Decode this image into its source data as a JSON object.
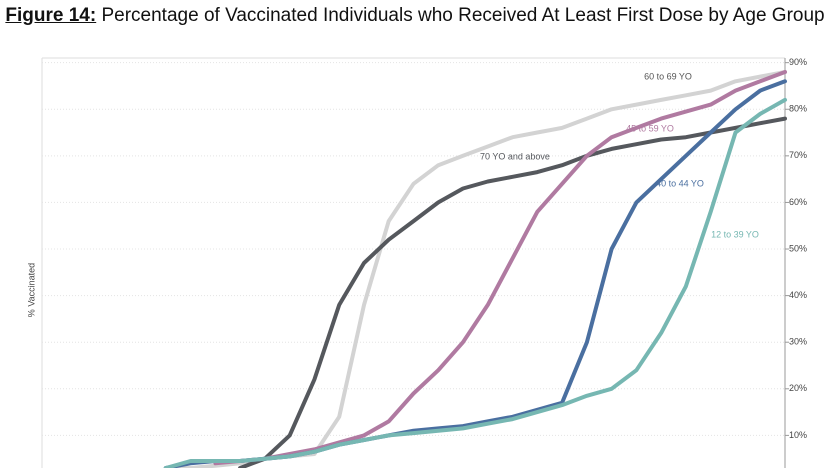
{
  "chart_data": {
    "type": "line",
    "figure_label": "Figure 14:",
    "title": "Percentage of Vaccinated Individuals who Received At Least First Dose by Age Group",
    "y_axis_label": "% Vaccinated",
    "ylim": [
      3,
      91
    ],
    "yticks": [
      {
        "value": 10,
        "label": "10%"
      },
      {
        "value": 20,
        "label": "20%"
      },
      {
        "value": 30,
        "label": "30%"
      },
      {
        "value": 40,
        "label": "40%"
      },
      {
        "value": 50,
        "label": "50%"
      },
      {
        "value": 60,
        "label": "60%"
      },
      {
        "value": 70,
        "label": "70%"
      },
      {
        "value": 80,
        "label": "80%"
      },
      {
        "value": 90,
        "label": "90%"
      }
    ],
    "grid": true,
    "series": [
      {
        "name": "60 to 69 YO",
        "color": "#d3d3d3",
        "values": [
          null,
          null,
          null,
          null,
          null,
          3,
          3,
          3.5,
          4,
          5,
          5.5,
          6,
          14,
          38,
          56,
          64,
          68,
          70,
          72,
          74,
          75,
          76,
          78,
          80,
          81,
          82,
          83,
          84,
          86,
          87,
          88
        ]
      },
      {
        "name": "70 YO and above",
        "color": "#55585d",
        "values": [
          null,
          null,
          null,
          null,
          null,
          null,
          null,
          null,
          3,
          5,
          10,
          22,
          38,
          47,
          52,
          56,
          60,
          63,
          64.5,
          65.5,
          66.5,
          68,
          70,
          71.5,
          72.5,
          73.5,
          74,
          75,
          76,
          77,
          78
        ]
      },
      {
        "name": "45 to 59 YO",
        "color": "#b07aa1",
        "values": [
          null,
          null,
          null,
          null,
          null,
          null,
          null,
          4,
          4.5,
          5,
          6,
          7,
          8.5,
          10,
          13,
          19,
          24,
          30,
          38,
          48,
          58,
          64,
          70,
          74,
          76,
          78,
          79.5,
          81,
          84,
          86,
          88
        ]
      },
      {
        "name": "40 to 44 YO",
        "color": "#4a6fa0",
        "values": [
          null,
          null,
          null,
          null,
          null,
          3,
          4,
          4.5,
          4.5,
          5,
          5.5,
          6.5,
          8,
          9,
          10,
          11,
          11.5,
          12,
          13,
          14,
          15.5,
          17,
          30,
          50,
          60,
          65,
          70,
          75,
          80,
          84,
          86
        ]
      },
      {
        "name": "12 to 39 YO",
        "color": "#76b7b2",
        "values": [
          null,
          null,
          null,
          null,
          null,
          3,
          4.5,
          4.5,
          4.5,
          5,
          5.5,
          6.5,
          8,
          9,
          10,
          10.5,
          11,
          11.5,
          12.5,
          13.5,
          15,
          16.5,
          18.5,
          20,
          24,
          32,
          42,
          58,
          75,
          79,
          82
        ]
      }
    ]
  }
}
